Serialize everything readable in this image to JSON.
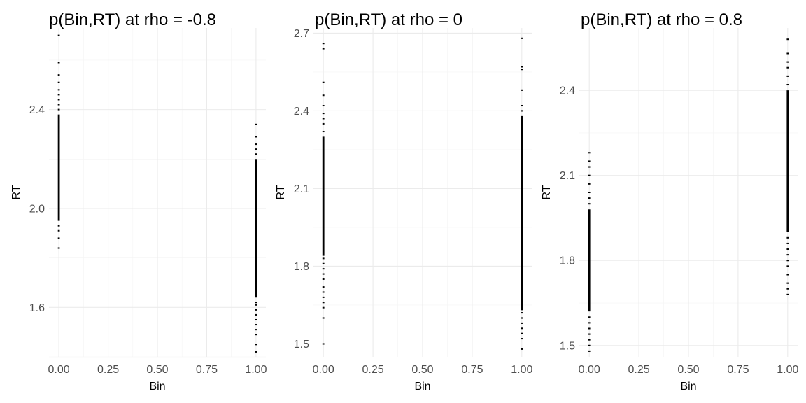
{
  "chart_data": [
    {
      "type": "scatter",
      "title": "p(Bin,RT) at rho = -0.8",
      "xlabel": "Bin",
      "ylabel": "RT",
      "xlim": [
        -0.05,
        1.05
      ],
      "ylim": [
        1.4,
        2.73
      ],
      "x_ticks": [
        0.0,
        0.25,
        0.5,
        0.75,
        1.0
      ],
      "x_tick_labels": [
        "0.00",
        "0.25",
        "0.50",
        "0.75",
        "1.00"
      ],
      "y_ticks": [
        1.6,
        2.0,
        2.4
      ],
      "y_tick_labels": [
        "1.6",
        "2.0",
        "2.4"
      ],
      "grid": true,
      "series": [
        {
          "x": 0,
          "dense_range": [
            1.95,
            2.38
          ],
          "points": [
            1.84,
            1.88,
            1.91,
            1.93,
            2.4,
            2.42,
            2.44,
            2.46,
            2.48,
            2.51,
            2.54,
            2.59,
            2.7
          ]
        },
        {
          "x": 1,
          "dense_range": [
            1.64,
            2.2
          ],
          "points": [
            1.42,
            1.45,
            1.49,
            1.51,
            1.53,
            1.55,
            1.57,
            1.59,
            1.61,
            1.62,
            2.22,
            2.24,
            2.26,
            2.29,
            2.34
          ]
        }
      ]
    },
    {
      "type": "scatter",
      "title": "p(Bin,RT) at rho = 0",
      "xlabel": "Bin",
      "ylabel": "RT",
      "xlim": [
        -0.05,
        1.05
      ],
      "ylim": [
        1.45,
        2.72
      ],
      "x_ticks": [
        0.0,
        0.25,
        0.5,
        0.75,
        1.0
      ],
      "x_tick_labels": [
        "0.00",
        "0.25",
        "0.50",
        "0.75",
        "1.00"
      ],
      "y_ticks": [
        1.5,
        1.8,
        2.1,
        2.4,
        2.7
      ],
      "y_tick_labels": [
        "1.5",
        "1.8",
        "2.1",
        "2.4",
        "2.7"
      ],
      "grid": true,
      "series": [
        {
          "x": 0,
          "dense_range": [
            1.84,
            2.3
          ],
          "points": [
            1.5,
            1.6,
            1.64,
            1.66,
            1.68,
            1.7,
            1.72,
            1.75,
            1.77,
            1.79,
            1.81,
            1.83,
            2.32,
            2.35,
            2.37,
            2.39,
            2.42,
            2.46,
            2.51,
            2.64,
            2.66
          ]
        },
        {
          "x": 1,
          "dense_range": [
            1.63,
            2.38
          ],
          "points": [
            1.48,
            1.52,
            1.54,
            1.56,
            1.58,
            1.6,
            1.62,
            2.4,
            2.42,
            2.48,
            2.56,
            2.57,
            2.68
          ]
        }
      ]
    },
    {
      "type": "scatter",
      "title": "p(Bin,RT) at rho = 0.8",
      "xlabel": "Bin",
      "ylabel": "RT",
      "xlim": [
        -0.05,
        1.05
      ],
      "ylim": [
        1.46,
        2.62
      ],
      "x_ticks": [
        0.0,
        0.25,
        0.5,
        0.75,
        1.0
      ],
      "x_tick_labels": [
        "0.00",
        "0.25",
        "0.50",
        "0.75",
        "1.00"
      ],
      "y_ticks": [
        1.5,
        1.8,
        2.1,
        2.4
      ],
      "y_tick_labels": [
        "1.5",
        "1.8",
        "2.1",
        "2.4"
      ],
      "grid": true,
      "series": [
        {
          "x": 0,
          "dense_range": [
            1.62,
            1.98
          ],
          "points": [
            1.48,
            1.5,
            1.52,
            1.54,
            1.56,
            1.58,
            1.6,
            2.0,
            2.02,
            2.04,
            2.07,
            2.1,
            2.13,
            2.15,
            2.18
          ]
        },
        {
          "x": 1,
          "dense_range": [
            1.9,
            2.4
          ],
          "points": [
            1.68,
            1.7,
            1.72,
            1.75,
            1.78,
            1.8,
            1.82,
            1.84,
            1.86,
            1.88,
            2.42,
            2.45,
            2.48,
            2.5,
            2.53,
            2.58
          ]
        }
      ]
    }
  ]
}
